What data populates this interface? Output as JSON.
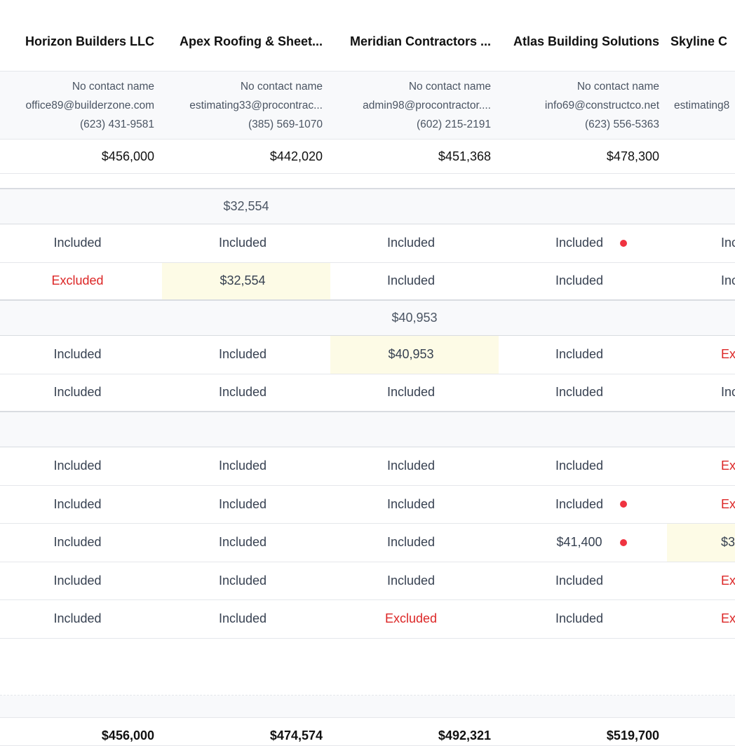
{
  "bidders": [
    {
      "name": "Horizon Builders LLC",
      "contact": "No contact name",
      "email": "office89@builderzone.com",
      "phone": "(623) 431-9581",
      "base": "$456,000",
      "total": "$456,000"
    },
    {
      "name": "Apex Roofing & Sheet...",
      "contact": "No contact name",
      "email": "estimating33@procontrac...",
      "phone": "(385) 569-1070",
      "base": "$442,020",
      "total": "$474,574"
    },
    {
      "name": "Meridian Contractors ...",
      "contact": "No contact name",
      "email": "admin98@procontractor....",
      "phone": "(602) 215-2191",
      "base": "$451,368",
      "total": "$492,321"
    },
    {
      "name": "Atlas Building Solutions",
      "contact": "No contact name",
      "email": "info69@constructco.net",
      "phone": "(623) 556-5363",
      "base": "$478,300",
      "total": "$519,700"
    },
    {
      "name": "Skyline C",
      "contact": "",
      "email": "estimating8",
      "phone": "",
      "base": "",
      "total": ""
    }
  ],
  "sections": [
    {
      "values": [
        "",
        "$32,554",
        "",
        "",
        ""
      ],
      "rows": [
        [
          {
            "t": "Included"
          },
          {
            "t": "Included"
          },
          {
            "t": "Included"
          },
          {
            "t": "Included",
            "dot": true
          },
          {
            "t": "Inc"
          }
        ],
        [
          {
            "t": "Excluded",
            "red": true
          },
          {
            "t": "$32,554",
            "hl": true
          },
          {
            "t": "Included"
          },
          {
            "t": "Included"
          },
          {
            "t": "Inc"
          }
        ]
      ]
    },
    {
      "values": [
        "",
        "",
        "$40,953",
        "",
        ""
      ],
      "rows": [
        [
          {
            "t": "Included"
          },
          {
            "t": "Included"
          },
          {
            "t": "$40,953",
            "hl": true
          },
          {
            "t": "Included"
          },
          {
            "t": "Exc",
            "red": true
          }
        ],
        [
          {
            "t": "Included"
          },
          {
            "t": "Included"
          },
          {
            "t": "Included"
          },
          {
            "t": "Included"
          },
          {
            "t": "Inc"
          }
        ]
      ]
    },
    {
      "values": [
        "",
        "",
        "",
        "",
        ""
      ],
      "rows": [
        [
          {
            "t": "Included"
          },
          {
            "t": "Included"
          },
          {
            "t": "Included"
          },
          {
            "t": "Included"
          },
          {
            "t": "Exc",
            "red": true
          }
        ],
        [
          {
            "t": "Included"
          },
          {
            "t": "Included"
          },
          {
            "t": "Included"
          },
          {
            "t": "Included",
            "dot": true
          },
          {
            "t": "Exc",
            "red": true
          }
        ],
        [
          {
            "t": "Included"
          },
          {
            "t": "Included"
          },
          {
            "t": "Included"
          },
          {
            "t": "$41,400",
            "dot": true
          },
          {
            "t": "$3",
            "hl": true
          }
        ],
        [
          {
            "t": "Included"
          },
          {
            "t": "Included"
          },
          {
            "t": "Included"
          },
          {
            "t": "Included"
          },
          {
            "t": "Exc",
            "red": true
          }
        ],
        [
          {
            "t": "Included"
          },
          {
            "t": "Included"
          },
          {
            "t": "Excluded",
            "red": true
          },
          {
            "t": "Included"
          },
          {
            "t": "Exc",
            "red": true
          }
        ]
      ]
    }
  ],
  "colors": {
    "excluded": "#dc2626",
    "highlight": "#fdfbe6",
    "flag_dot": "#ef3340"
  }
}
